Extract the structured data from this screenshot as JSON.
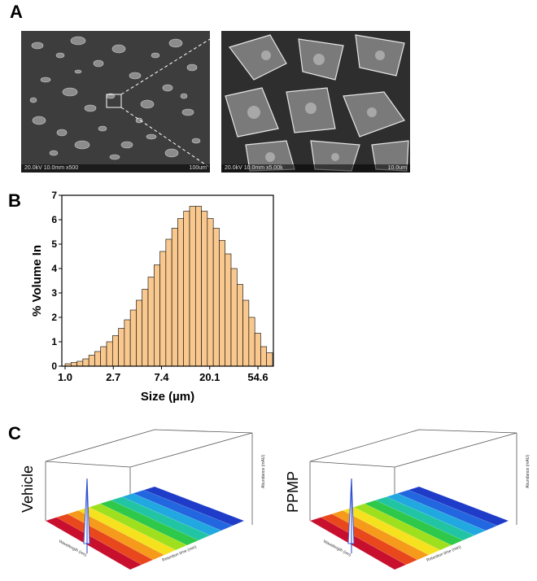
{
  "panels": {
    "a": {
      "letter": "A"
    },
    "b": {
      "letter": "B"
    },
    "c": {
      "letter": "C"
    }
  },
  "sem": {
    "left": {
      "info": "20.0kV 10.0mm x500",
      "scale": "100um"
    },
    "right": {
      "info": "20.0kV 10.0mm x5.00k",
      "scale": "10.0um"
    }
  },
  "chart_data": {
    "type": "bar",
    "title": "",
    "xlabel": "Size (µm)",
    "ylabel": "% Volume In",
    "ylim": [
      0,
      7
    ],
    "yticks": [
      "0",
      "1",
      "2",
      "3",
      "4",
      "5",
      "6",
      "7"
    ],
    "xtick_labels": [
      "1.0",
      "2.7",
      "7.4",
      "20.1",
      "54.6"
    ],
    "bar_color": "#f9c88f",
    "bar_edge_color": "#000000",
    "grid": false,
    "values": [
      0.1,
      0.15,
      0.2,
      0.3,
      0.45,
      0.6,
      0.8,
      1.0,
      1.25,
      1.55,
      1.9,
      2.3,
      2.7,
      3.15,
      3.65,
      4.15,
      4.7,
      5.2,
      5.65,
      6.05,
      6.35,
      6.55,
      6.55,
      6.35,
      6.05,
      5.65,
      5.15,
      4.6,
      4.0,
      3.35,
      2.7,
      2.0,
      1.35,
      0.8,
      0.55
    ]
  },
  "chromatograms": {
    "vehicle": {
      "label": "Vehicle",
      "z_axis": "Abundance (mAU)",
      "y_axis": "Retention time (min)",
      "x_axis": "Wavelength (nm)"
    },
    "ppmp": {
      "label": "PPMP",
      "z_axis": "Abundance (mAU)",
      "y_axis": "Retention time (min)",
      "x_axis": "Wavelength (nm)"
    },
    "surface_colors": [
      "#c8102e",
      "#e8481c",
      "#f59a1a",
      "#f5e11e",
      "#9fe01e",
      "#2ec84a",
      "#21c5a4",
      "#22a8e0",
      "#2266e0",
      "#1f3cc8"
    ]
  }
}
